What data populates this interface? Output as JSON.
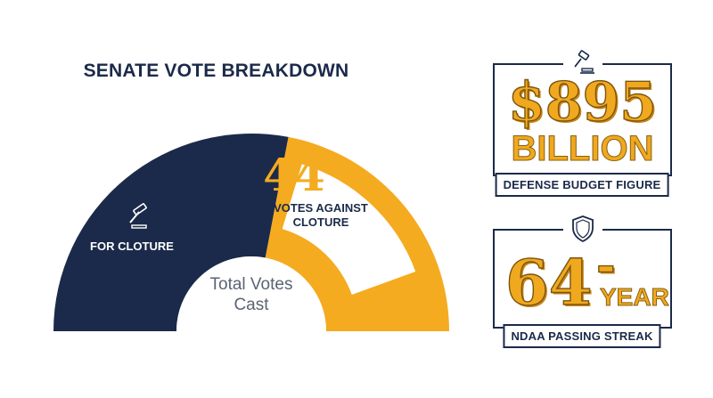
{
  "chart_data": {
    "type": "gauge",
    "title": "SENATE VOTE BREAKDOWN",
    "center_label": "Total Votes Cast",
    "segments": [
      {
        "label": "FOR CLOTURE",
        "value": 56,
        "color": "#1b2a4a",
        "icon": "gavel-icon"
      },
      {
        "label": "VOTES AGAINST CLOTURE",
        "value": 44,
        "color": "#f4ab1f"
      }
    ],
    "highlight_value": "44"
  },
  "cards": {
    "budget": {
      "icon": "gavel-icon",
      "value_top": "$895",
      "value_bottom": "BILLION",
      "caption": "DEFENSE BUDGET FIGURE"
    },
    "streak": {
      "icon": "shield-icon",
      "number": "64",
      "dash": "-",
      "unit": "YEAR",
      "caption": "NDAA PASSING STREAK"
    }
  },
  "colors": {
    "navy": "#1b2a4a",
    "gold": "#f4ab1f",
    "white": "#ffffff"
  }
}
